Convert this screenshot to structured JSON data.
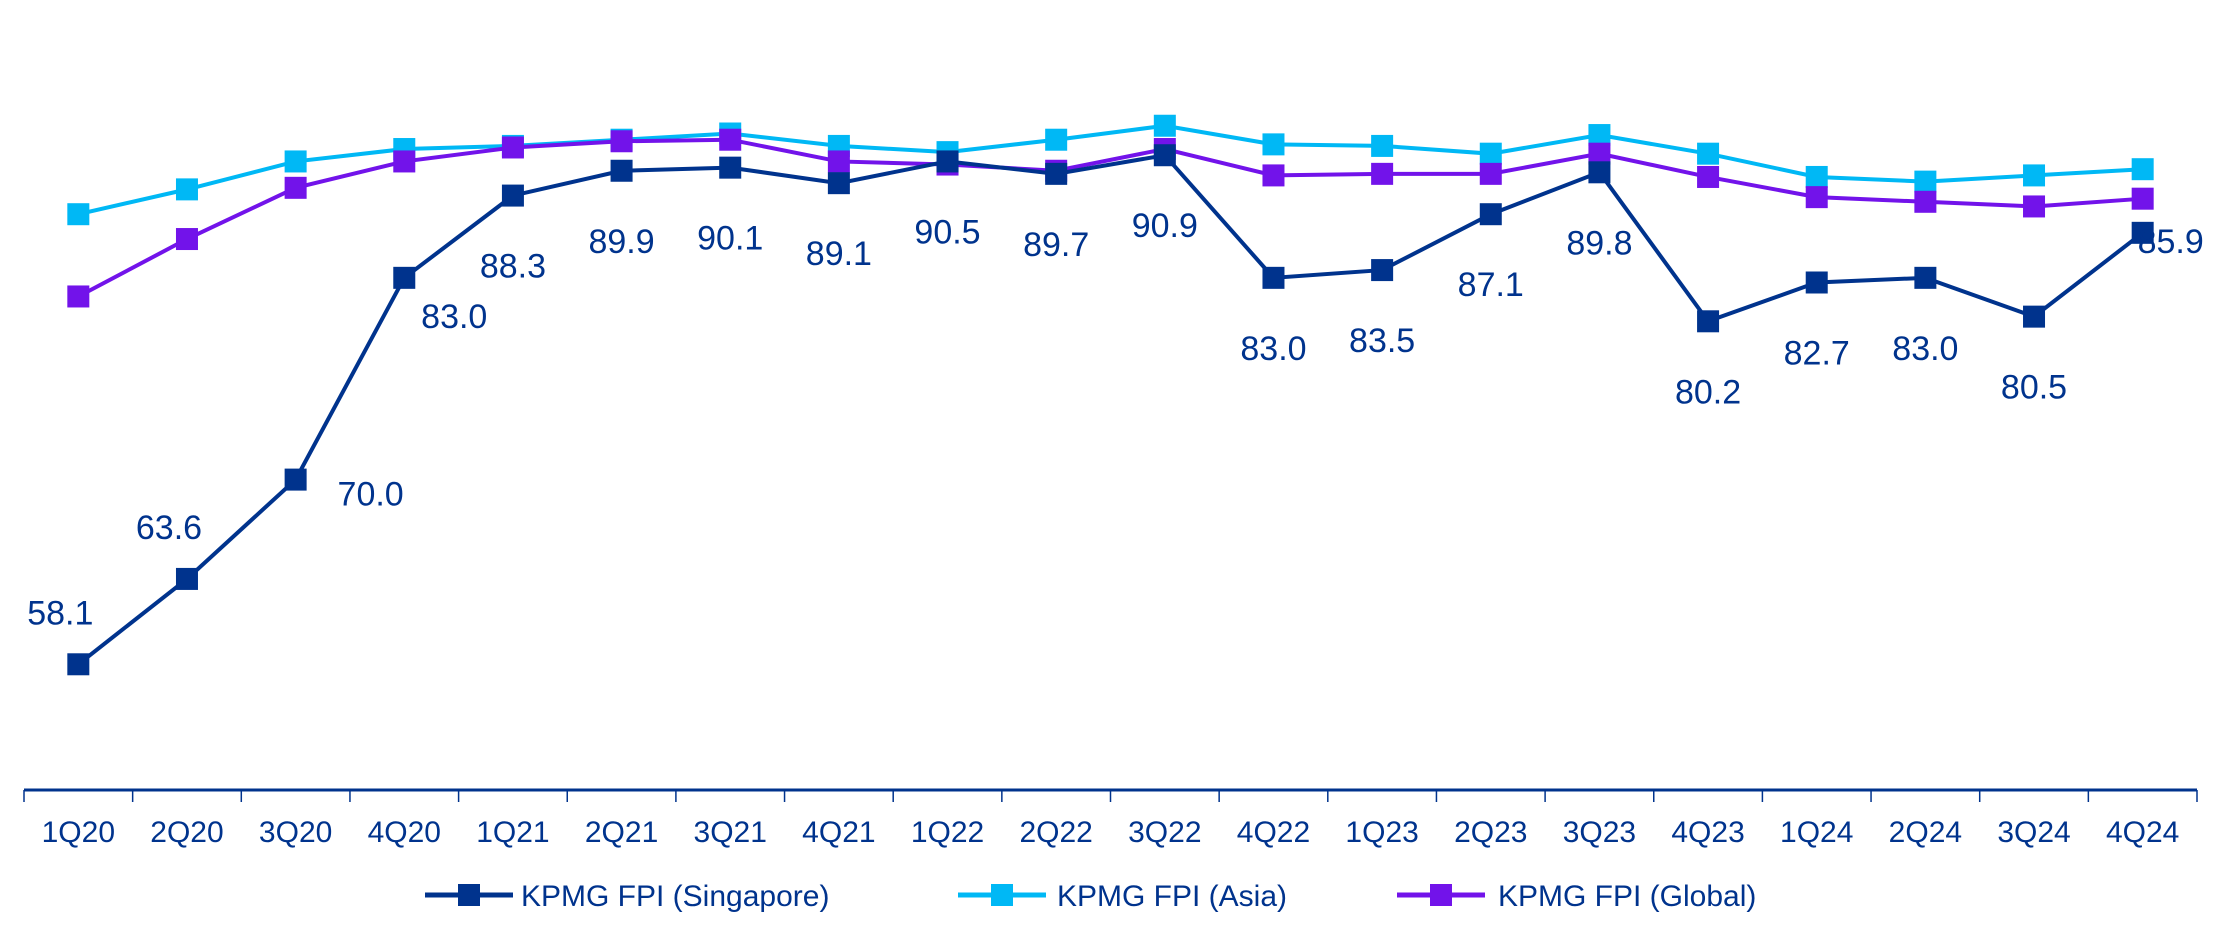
{
  "chart_data": {
    "type": "line",
    "title": "",
    "xlabel": "",
    "ylabel": "",
    "ylim": [
      50,
      100
    ],
    "grid": false,
    "legend_position": "bottom",
    "categories": [
      "1Q20",
      "2Q20",
      "3Q20",
      "4Q20",
      "1Q21",
      "2Q21",
      "3Q21",
      "4Q21",
      "1Q22",
      "2Q22",
      "3Q22",
      "4Q22",
      "1Q23",
      "2Q23",
      "3Q23",
      "4Q23",
      "1Q24",
      "2Q24",
      "3Q24",
      "4Q24"
    ],
    "series": [
      {
        "name": "KPMG FPI (Singapore)",
        "color": "#00338D",
        "data_labels": true,
        "values": [
          58.1,
          63.6,
          70.0,
          83.0,
          88.3,
          89.9,
          90.1,
          89.1,
          90.5,
          89.7,
          90.9,
          83.0,
          83.5,
          87.1,
          89.8,
          80.2,
          82.7,
          83.0,
          80.5,
          85.9
        ],
        "labels": [
          "58.1",
          "63.6",
          "70.0",
          "83.0",
          "88.3",
          "89.9",
          "90.1",
          "89.1",
          "90.5",
          "89.7",
          "90.9",
          "83.0",
          "83.5",
          "87.1",
          "89.8",
          "80.2",
          "82.7",
          "83.0",
          "80.5",
          "85.9"
        ]
      },
      {
        "name": "KPMG FPI (Asia)",
        "color": "#00B8F5",
        "data_labels": false,
        "values": [
          87.1,
          88.7,
          90.5,
          91.3,
          91.5,
          91.9,
          92.3,
          91.5,
          91.1,
          91.9,
          92.8,
          91.6,
          91.5,
          91.0,
          92.2,
          91.0,
          89.5,
          89.2,
          89.6,
          90.0
        ]
      },
      {
        "name": "KPMG FPI (Global)",
        "color": "#7213EA",
        "data_labels": false,
        "values": [
          81.8,
          85.5,
          88.8,
          90.5,
          91.4,
          91.8,
          91.9,
          90.5,
          90.3,
          89.9,
          91.3,
          89.6,
          89.7,
          89.7,
          91.0,
          89.5,
          88.2,
          87.9,
          87.6,
          88.1
        ]
      }
    ]
  }
}
